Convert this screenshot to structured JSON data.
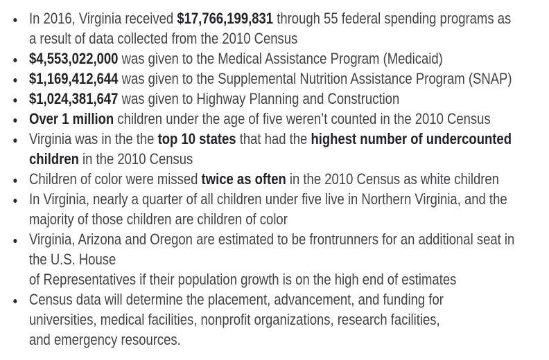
{
  "page": {
    "background_color": "#ffffff"
  },
  "list": {
    "bullet_char": "•",
    "bullet_color": "#2a2a2c",
    "text_color": "#434346",
    "bold_color": "#232326",
    "items": [
      {
        "segments": [
          {
            "text": "In 2016, Virginia received ",
            "bold": false
          },
          {
            "text": "$17,766,199,831",
            "bold": true
          },
          {
            "text": " through 55 federal spending programs as\na result of data collected from the 2010 Census",
            "bold": false
          }
        ]
      },
      {
        "segments": [
          {
            "text": "$4,553,022,000",
            "bold": true
          },
          {
            "text": " was given to the Medical Assistance Program (Medicaid)",
            "bold": false
          }
        ]
      },
      {
        "segments": [
          {
            "text": "$1,169,412,644",
            "bold": true
          },
          {
            "text": " was given to the Supplemental Nutrition Assistance Program (SNAP)",
            "bold": false
          }
        ]
      },
      {
        "segments": [
          {
            "text": "$1,024,381,647",
            "bold": true
          },
          {
            "text": " was given to Highway Planning and Construction",
            "bold": false
          }
        ]
      },
      {
        "segments": [
          {
            "text": "Over 1 million",
            "bold": true
          },
          {
            "text": " children under the age of five weren’t counted in the 2010 Census",
            "bold": false
          }
        ]
      },
      {
        "segments": [
          {
            "text": "Virginia was in the the ",
            "bold": false
          },
          {
            "text": "top 10 states",
            "bold": true
          },
          {
            "text": " that had the ",
            "bold": false
          },
          {
            "text": "highest number of undercounted\nchildren",
            "bold": true
          },
          {
            "text": " in the 2010 Census",
            "bold": false
          }
        ]
      },
      {
        "segments": [
          {
            "text": "Children of color were missed ",
            "bold": false
          },
          {
            "text": "twice as often",
            "bold": true
          },
          {
            "text": " in the 2010 Census as white children",
            "bold": false
          }
        ]
      },
      {
        "segments": [
          {
            "text": "In Virginia, nearly a quarter of all children under five live in Northern Virginia, and the\nmajority of those children are children of color",
            "bold": false
          }
        ]
      },
      {
        "segments": [
          {
            "text": "Virginia, Arizona and Oregon are estimated to be frontrunners for an additional seat in\nthe U.S. House\nof Representatives if their population growth is on the high end of estimates",
            "bold": false
          }
        ]
      },
      {
        "segments": [
          {
            "text": "Census data will determine the placement, advancement, and funding for\nuniversities, medical facilities, nonprofit organizations, research facilities,\nand emergency resources.",
            "bold": false
          }
        ]
      }
    ]
  }
}
